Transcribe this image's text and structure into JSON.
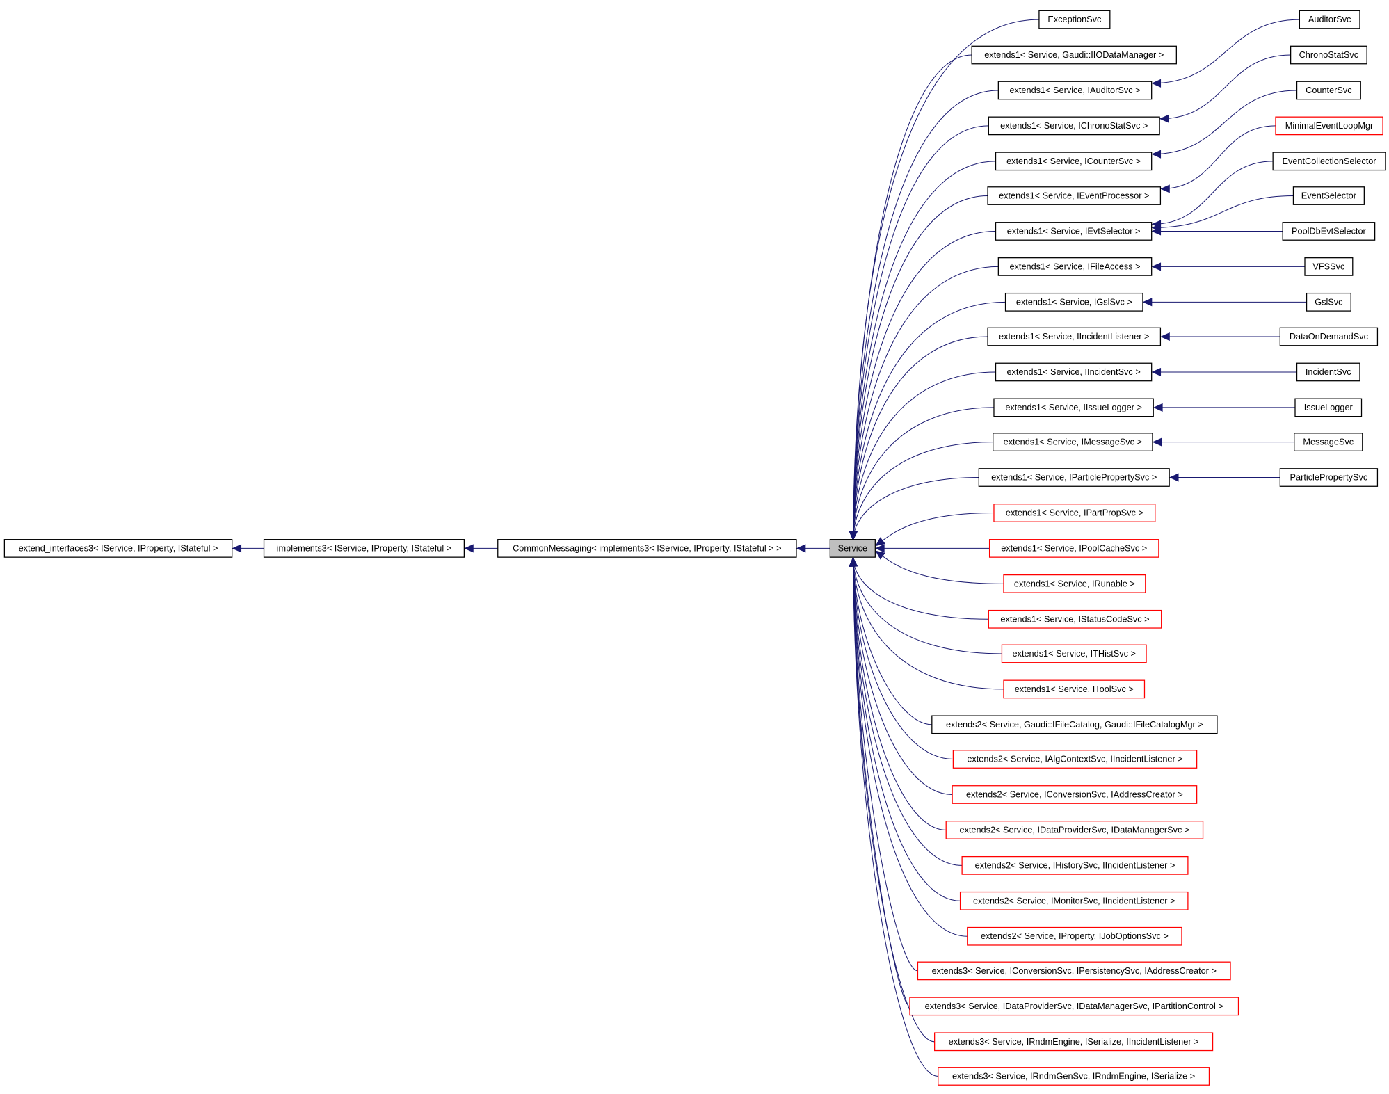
{
  "nodes": [
    {
      "label": "extend_interfaces3< IService, IProperty, IStateful >",
      "border": "#000000"
    },
    {
      "label": "implements3< IService, IProperty, IStateful >",
      "border": "#000000"
    },
    {
      "label": "CommonMessaging< implements3< IService, IProperty, IStateful > >",
      "border": "#000000"
    },
    {
      "label": "Service",
      "border": "#000000"
    },
    {
      "label": "ExceptionSvc",
      "border": "#000000"
    },
    {
      "label": "extends1< Service, Gaudi::IIODataManager >",
      "border": "#000000"
    },
    {
      "label": "extends1< Service, IAuditorSvc >",
      "border": "#000000"
    },
    {
      "label": "extends1< Service, IChronoStatSvc >",
      "border": "#000000"
    },
    {
      "label": "extends1< Service, ICounterSvc >",
      "border": "#000000"
    },
    {
      "label": "extends1< Service, IEventProcessor >",
      "border": "#000000"
    },
    {
      "label": "extends1< Service, IEvtSelector >",
      "border": "#000000"
    },
    {
      "label": "extends1< Service, IFileAccess >",
      "border": "#000000"
    },
    {
      "label": "extends1< Service, IGslSvc >",
      "border": "#000000"
    },
    {
      "label": "extends1< Service, IIncidentListener >",
      "border": "#000000"
    },
    {
      "label": "extends1< Service, IIncidentSvc >",
      "border": "#000000"
    },
    {
      "label": "extends1< Service, IIssueLogger >",
      "border": "#000000"
    },
    {
      "label": "extends1< Service, IMessageSvc >",
      "border": "#000000"
    },
    {
      "label": "extends1< Service, IParticlePropertySvc >",
      "border": "#000000"
    },
    {
      "label": "extends1< Service, IPartPropSvc >",
      "border": "#ff0000"
    },
    {
      "label": "extends1< Service, IPoolCacheSvc >",
      "border": "#ff0000"
    },
    {
      "label": "extends1< Service, IRunable >",
      "border": "#ff0000"
    },
    {
      "label": "extends1< Service, IStatusCodeSvc >",
      "border": "#ff0000"
    },
    {
      "label": "extends1< Service, ITHistSvc >",
      "border": "#ff0000"
    },
    {
      "label": "extends1< Service, IToolSvc >",
      "border": "#ff0000"
    },
    {
      "label": "extends2< Service, Gaudi::IFileCatalog, Gaudi::IFileCatalogMgr >",
      "border": "#000000"
    },
    {
      "label": "extends2< Service, IAlgContextSvc, IIncidentListener >",
      "border": "#ff0000"
    },
    {
      "label": "extends2< Service, IConversionSvc, IAddressCreator >",
      "border": "#ff0000"
    },
    {
      "label": "extends2< Service, IDataProviderSvc, IDataManagerSvc >",
      "border": "#ff0000"
    },
    {
      "label": "extends2< Service, IHistorySvc, IIncidentListener >",
      "border": "#ff0000"
    },
    {
      "label": "extends2< Service, IMonitorSvc, IIncidentListener >",
      "border": "#ff0000"
    },
    {
      "label": "extends2< Service, IProperty, IJobOptionsSvc >",
      "border": "#ff0000"
    },
    {
      "label": "extends3< Service, IConversionSvc, IPersistencySvc, IAddressCreator >",
      "border": "#ff0000"
    },
    {
      "label": "extends3< Service, IDataProviderSvc, IDataManagerSvc, IPartitionControl >",
      "border": "#ff0000"
    },
    {
      "label": "extends3< Service, IRndmEngine, ISerialize, IIncidentListener >",
      "border": "#ff0000"
    },
    {
      "label": "extends3< Service, IRndmGenSvc, IRndmEngine, ISerialize >",
      "border": "#ff0000"
    },
    {
      "label": "AuditorSvc",
      "border": "#000000"
    },
    {
      "label": "ChronoStatSvc",
      "border": "#000000"
    },
    {
      "label": "CounterSvc",
      "border": "#000000"
    },
    {
      "label": "MinimalEventLoopMgr",
      "border": "#ff0000"
    },
    {
      "label": "EventCollectionSelector",
      "border": "#000000"
    },
    {
      "label": "EventSelector",
      "border": "#000000"
    },
    {
      "label": "PoolDbEvtSelector",
      "border": "#000000"
    },
    {
      "label": "VFSSvc",
      "border": "#000000"
    },
    {
      "label": "GslSvc",
      "border": "#000000"
    },
    {
      "label": "DataOnDemandSvc",
      "border": "#000000"
    },
    {
      "label": "IncidentSvc",
      "border": "#000000"
    },
    {
      "label": "IssueLogger",
      "border": "#000000"
    },
    {
      "label": "MessageSvc",
      "border": "#000000"
    },
    {
      "label": "ParticlePropertySvc",
      "border": "#000000"
    }
  ]
}
